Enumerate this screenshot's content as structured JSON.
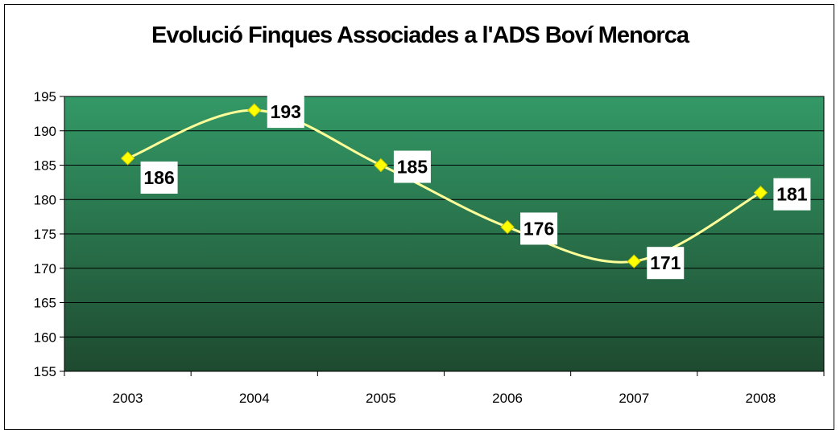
{
  "chart_data": {
    "type": "line",
    "title": "Evolució Finques Associades a l'ADS Boví Menorca",
    "categories": [
      "2003",
      "2004",
      "2005",
      "2006",
      "2007",
      "2008"
    ],
    "series": [
      {
        "values": [
          186,
          193,
          185,
          176,
          171,
          181
        ]
      }
    ],
    "data_labels": [
      "186",
      "193",
      "185",
      "176",
      "171",
      "181"
    ],
    "ylim": [
      155,
      195
    ],
    "y_ticks": [
      155,
      160,
      165,
      170,
      175,
      180,
      185,
      190,
      195
    ],
    "grid": true,
    "legend": "none",
    "colors": {
      "line": "#FFFF99",
      "marker_fill": "#FFFF00",
      "marker_stroke": "#CCCC00",
      "plot_top": "#339966",
      "plot_bottom": "#1E4A30",
      "label_box": "#FFFFFF"
    }
  }
}
